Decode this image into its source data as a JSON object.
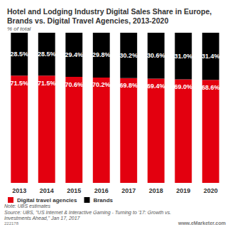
{
  "chart_data": {
    "type": "bar",
    "title": "Hotel and Lodging Industry Digital Sales Share in Europe, Brands vs. Digital Travel Agencies, 2013-2020",
    "subtitle": "% of total",
    "categories": [
      "2013",
      "2014",
      "2015",
      "2016",
      "2017",
      "2018",
      "2019",
      "2020"
    ],
    "series": [
      {
        "name": "Digital travel agencies",
        "color": "#e3000f",
        "values": [
          71.5,
          71.5,
          70.6,
          70.2,
          69.8,
          69.4,
          69.0,
          68.6
        ],
        "value_labels": [
          "71.5%",
          "71.5%",
          "70.6%",
          "70.2%",
          "69.8%",
          "69.4%",
          "69.0%",
          "68.6%"
        ]
      },
      {
        "name": "Brands",
        "color": "#000000",
        "values": [
          28.5,
          28.5,
          29.4,
          29.8,
          30.2,
          30.6,
          31.0,
          31.4
        ],
        "value_labels": [
          "28.5%",
          "28.5%",
          "29.4%",
          "29.8%",
          "30.2%",
          "30.6%",
          "31.0%",
          "31.4%"
        ]
      }
    ],
    "ylim": [
      0,
      100
    ],
    "stacked": true,
    "data_labels": true,
    "tick_labels": "x",
    "grid": false,
    "legend": "bottom",
    "annotations": [
      "Note: UBS estimates",
      "Source: UBS, \"US Internet & Interactive Gaming - Turning to '17: Growth vs. Investments Ahead,\" Jan 17, 2017",
      "222178",
      "www.eMarketer.com"
    ]
  }
}
